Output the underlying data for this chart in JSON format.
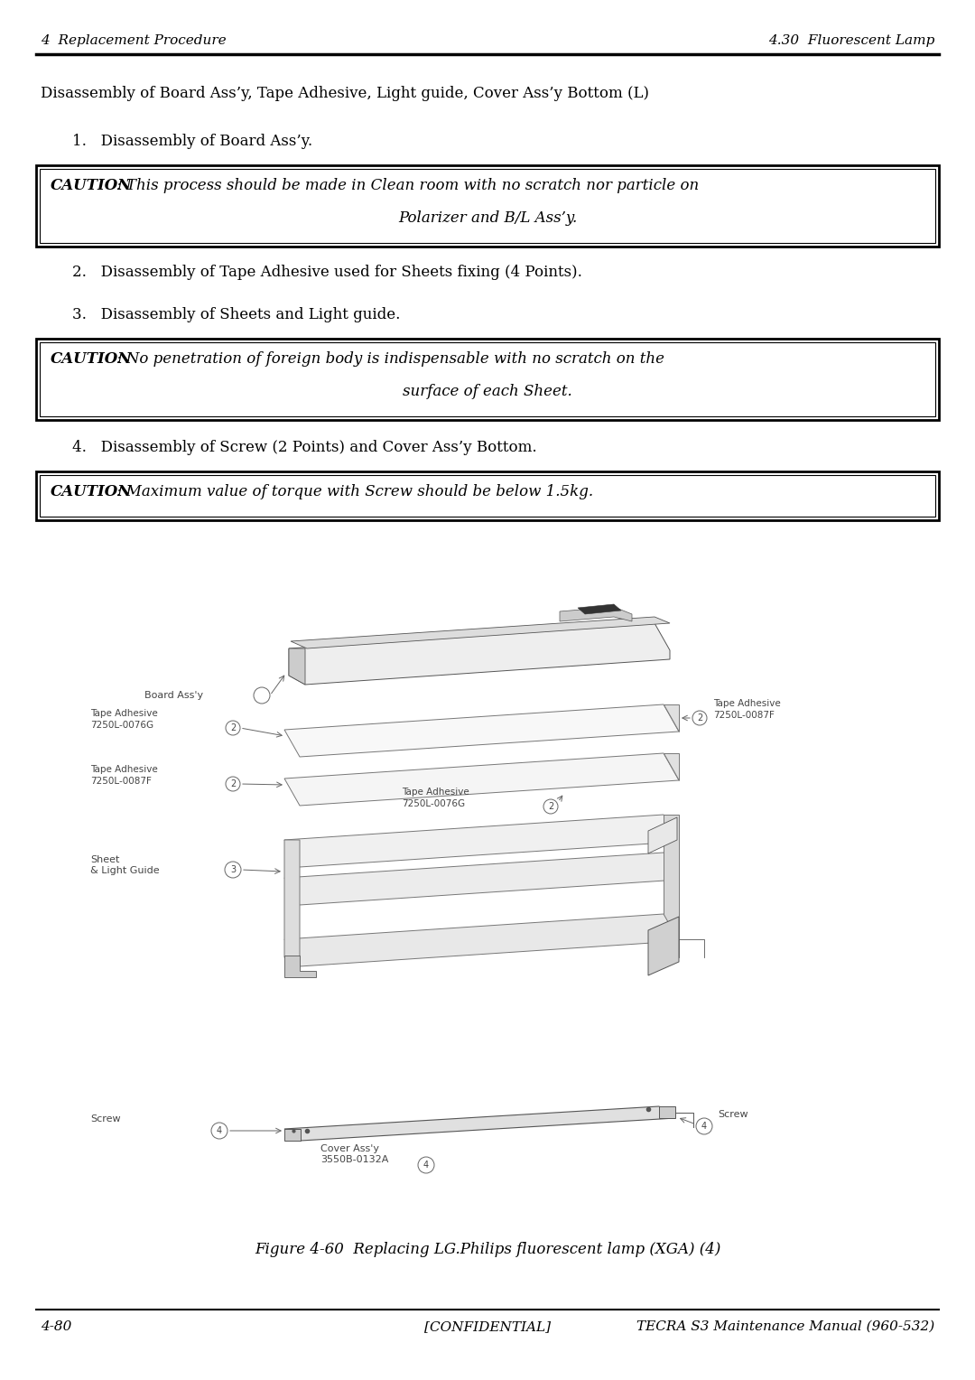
{
  "bg_color": "#ffffff",
  "header_left": "4  Replacement Procedure",
  "header_right": "4.30  Fluorescent Lamp",
  "footer_left": "4-80",
  "footer_center": "[CONFIDENTIAL]",
  "footer_right": "TECRA S3 Maintenance Manual (960-532)",
  "main_text": "Disassembly of Board Ass’y, Tape Adhesive, Light guide, Cover Ass’y Bottom (L)",
  "item1": "1.   Disassembly of Board Ass’y.",
  "caution1_bold": "CAUTION",
  "caution1_line1": ": This process should be made in Clean room with no scratch nor particle on",
  "caution1_line2": "Polarizer and B/L Ass’y.",
  "item2": "2.   Disassembly of Tape Adhesive used for Sheets fixing (4 Points).",
  "item3": "3.   Disassembly of Sheets and Light guide.",
  "caution2_bold": "CAUTION",
  "caution2_line1": ": No penetration of foreign body is indispensable with no scratch on the",
  "caution2_line2": "surface of each Sheet.",
  "item4": "4.   Disassembly of Screw (2 Points) and Cover Ass’y Bottom.",
  "caution3_bold": "CAUTION",
  "caution3_rest": ": Maximum value of torque with Screw should be below 1.5kg.",
  "figure_caption": "Figure 4-60  Replacing LG.Philips fluorescent lamp (XGA) (4)"
}
